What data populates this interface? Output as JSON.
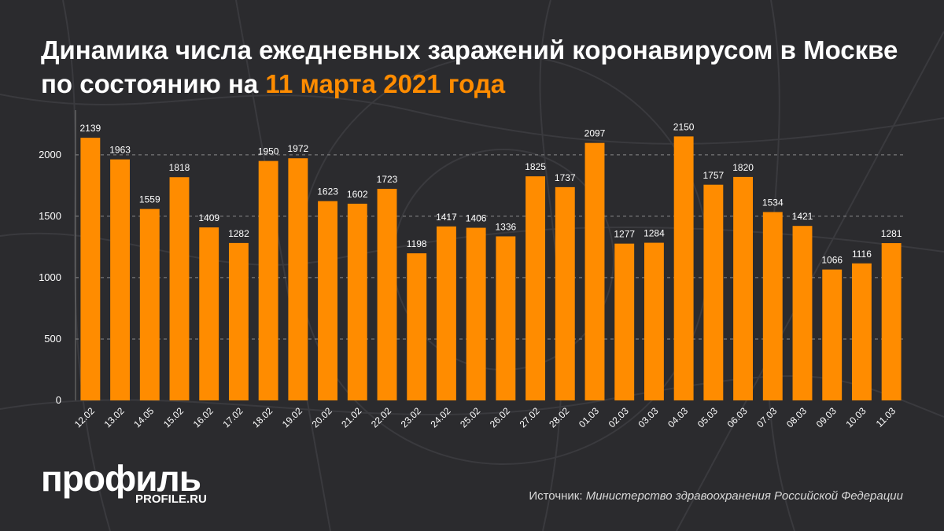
{
  "header": {
    "title_main": "Динамика числа ежедневных заражений коронавирусом в Москве по состоянию на ",
    "title_accent": "11 марта 2021 года"
  },
  "colors": {
    "background": "#2b2b2e",
    "bar": "#ff8c00",
    "accent": "#ff8c00",
    "text": "#ffffff",
    "grid": "#8a8a8a"
  },
  "chart_data": {
    "type": "bar",
    "categories": [
      "12.02",
      "13.02",
      "14.05",
      "15.02",
      "16.02",
      "17.02",
      "18.02",
      "19.02",
      "20.02",
      "21.02",
      "22.02",
      "23.02",
      "24.02",
      "25.02",
      "26.02",
      "27.02",
      "28.02",
      "01.03",
      "02.03",
      "03.03",
      "04.03",
      "05.03",
      "06.03",
      "07.03",
      "08.03",
      "09.03",
      "10.03",
      "11.03"
    ],
    "values": [
      2139,
      1963,
      1559,
      1818,
      1409,
      1282,
      1950,
      1972,
      1623,
      1602,
      1723,
      1198,
      1417,
      1406,
      1336,
      1825,
      1737,
      2097,
      1277,
      1284,
      2150,
      1757,
      1820,
      1534,
      1421,
      1066,
      1116,
      1281
    ],
    "yticks": [
      0,
      500,
      1000,
      1500,
      2000
    ],
    "ylim": [
      0,
      2300
    ],
    "grid": true,
    "data_labels": true
  },
  "footer": {
    "logo": "профиль",
    "logo_sub": "PROFILE.RU",
    "source_label": "Источник: ",
    "source_text": "Министерство здравоохранения Российской Федерации"
  }
}
